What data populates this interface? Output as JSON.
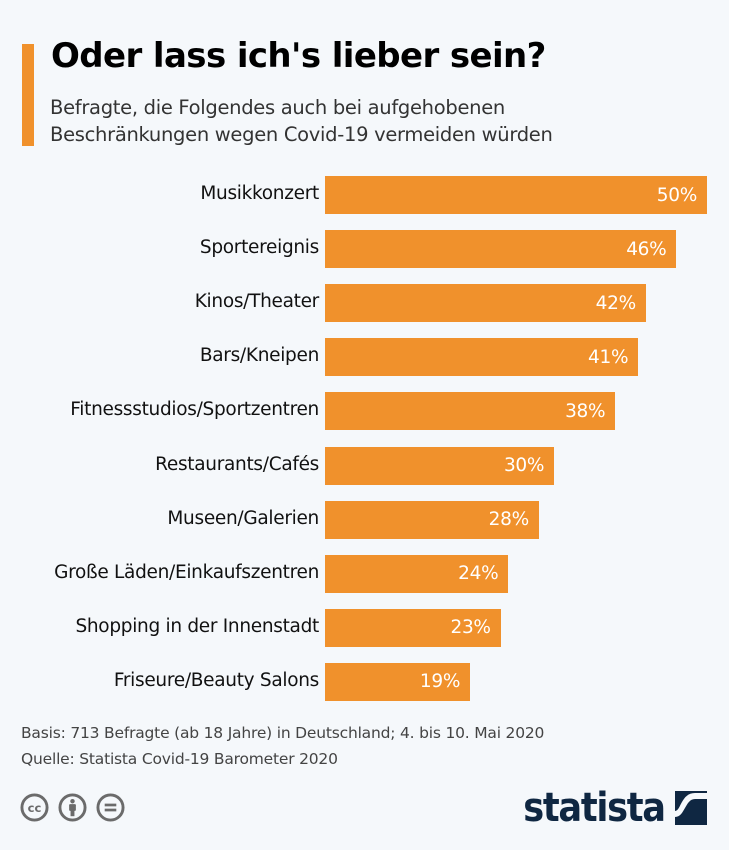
{
  "header": {
    "title": "Oder lass ich's lieber sein?",
    "subtitle_line1": "Befragte, die Folgendes auch bei aufgehobenen",
    "subtitle_line2": "Beschränkungen wegen Covid-19 vermeiden würden"
  },
  "colors": {
    "accent": "#f0912c",
    "bar": "#f0912c",
    "background": "#f5f8fb",
    "logo": "#0f2742",
    "icon_gray": "#6b6b6b"
  },
  "chart_data": {
    "type": "bar",
    "orientation": "horizontal",
    "title": "Oder lass ich's lieber sein?",
    "subtitle": "Befragte, die Folgendes auch bei aufgehobenen Beschränkungen wegen Covid-19 vermeiden würden",
    "xlabel": "",
    "ylabel": "",
    "unit": "%",
    "xlim": [
      0,
      50
    ],
    "grid": false,
    "legend": "none",
    "categories": [
      "Musikkonzert",
      "Sportereignis",
      "Kinos/Theater",
      "Bars/Kneipen",
      "Fitnessstudios/Sportzentren",
      "Restaurants/Cafés",
      "Museen/Galerien",
      "Große Läden/Einkaufszentren",
      "Shopping in der Innenstadt",
      "Friseure/Beauty Salons"
    ],
    "values": [
      50,
      46,
      42,
      41,
      38,
      30,
      28,
      24,
      23,
      19
    ],
    "value_labels": [
      "50%",
      "46%",
      "42%",
      "41%",
      "38%",
      "30%",
      "28%",
      "24%",
      "23%",
      "19%"
    ]
  },
  "footer": {
    "basis": "Basis: 713 Befragte (ab 18 Jahre) in Deutschland; 4. bis 10. Mai 2020",
    "source": "Quelle: Statista Covid-19 Barometer 2020",
    "license_icons": [
      "creative-commons-icon",
      "attribution-icon",
      "no-derivatives-icon"
    ],
    "logo_text": "statista"
  }
}
